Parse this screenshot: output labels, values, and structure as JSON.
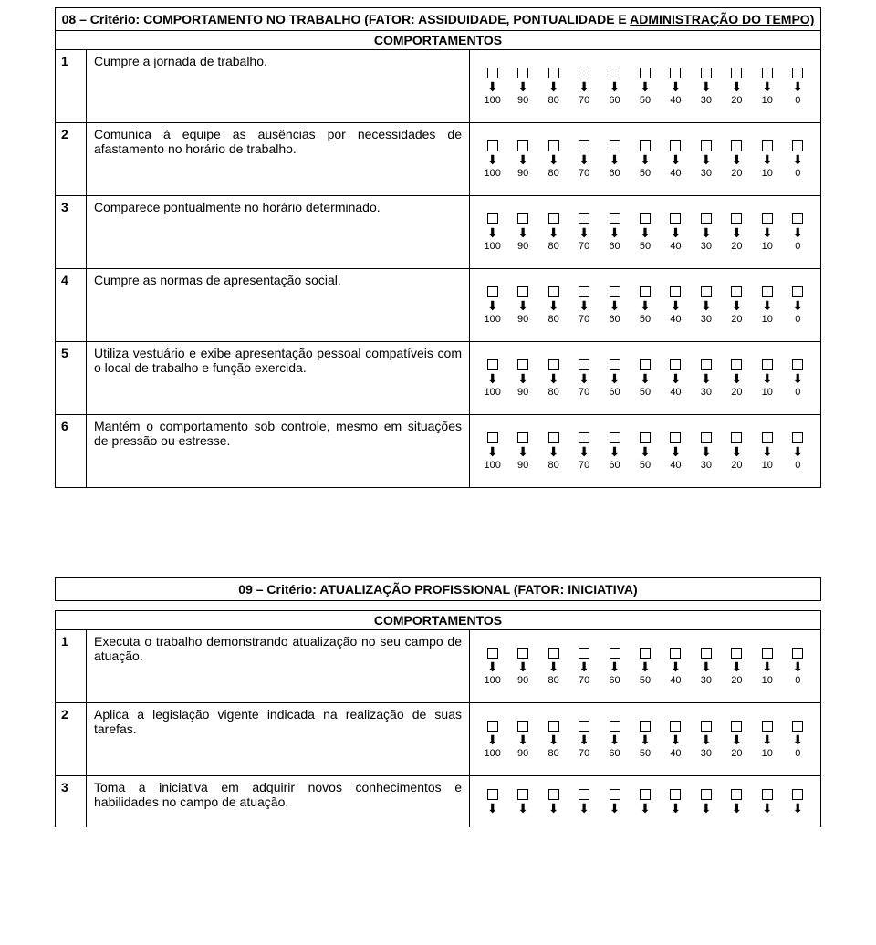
{
  "section08": {
    "title_prefix": "08 – Critério: COMPORTAMENTO NO TRABALHO (FATOR: ASSIDUIDADE, PONTUALIDADE E ",
    "title_underlined": "ADMINISTRAÇÃO DO TEMPO)",
    "sub": "COMPORTAMENTOS",
    "rows": [
      {
        "n": "1",
        "d": "Cumpre a jornada de trabalho."
      },
      {
        "n": "2",
        "d": "Comunica à equipe as ausências por necessidades de afastamento no horário de trabalho."
      },
      {
        "n": "3",
        "d": "Comparece pontualmente no horário determinado."
      },
      {
        "n": "4",
        "d": "Cumpre as normas de apresentação social."
      },
      {
        "n": "5",
        "d": "Utiliza vestuário e exibe apresentação pessoal compatíveis com o local de trabalho e função exercida."
      },
      {
        "n": "6",
        "d": "Mantém o comportamento sob controle, mesmo em situações de pressão ou estresse."
      }
    ]
  },
  "section09": {
    "title": "09 – Critério: ATUALIZAÇÃO PROFISSIONAL (FATOR: INICIATIVA)",
    "sub": "COMPORTAMENTOS",
    "rows": [
      {
        "n": "1",
        "d": "Executa o trabalho demonstrando atualização no seu campo de atuação."
      },
      {
        "n": "2",
        "d": "Aplica a legislação vigente indicada na realização de suas tarefas."
      },
      {
        "n": "3",
        "d": "Toma a iniciativa em adquirir novos conhecimentos e habilidades no campo de atuação."
      }
    ]
  },
  "scale": {
    "values": [
      "100",
      "90",
      "80",
      "70",
      "60",
      "50",
      "40",
      "30",
      "20",
      "10",
      "0"
    ],
    "arrow_glyph": "⬇"
  }
}
